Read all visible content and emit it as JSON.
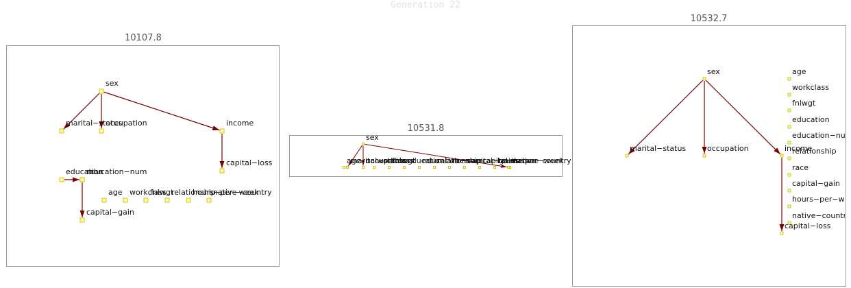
{
  "title": "Generation 22",
  "panels": [
    {
      "score": "10107.8",
      "nodes": [
        {
          "id": "sex",
          "label": "sex"
        },
        {
          "id": "marital-status",
          "label": "marital−status"
        },
        {
          "id": "occupation",
          "label": "occupation"
        },
        {
          "id": "income",
          "label": "income"
        },
        {
          "id": "capital-loss",
          "label": "capital−loss"
        },
        {
          "id": "education",
          "label": "education"
        },
        {
          "id": "race",
          "label": "race"
        },
        {
          "id": "education-num",
          "label": "education−num"
        },
        {
          "id": "capital-gain",
          "label": "capital−gain"
        },
        {
          "id": "age",
          "label": "age"
        },
        {
          "id": "workclass",
          "label": "workclass"
        },
        {
          "id": "fnlwgt",
          "label": "fnlwgt"
        },
        {
          "id": "relationship",
          "label": "relationship"
        },
        {
          "id": "hours-per-week",
          "label": "hours−per−week"
        },
        {
          "id": "native-country",
          "label": "native−country"
        }
      ],
      "edges": [
        [
          "sex",
          "marital-status"
        ],
        [
          "sex",
          "occupation"
        ],
        [
          "sex",
          "income"
        ],
        [
          "income",
          "capital-loss"
        ],
        [
          "education",
          "race"
        ],
        [
          "education-num",
          "capital-gain"
        ]
      ]
    },
    {
      "score": "10531.8",
      "nodes": [
        {
          "id": "sex",
          "label": "sex"
        },
        {
          "id": "age",
          "label": "age"
        },
        {
          "id": "marital-status",
          "label": "marital−status"
        },
        {
          "id": "occupation",
          "label": "occupation"
        },
        {
          "id": "workclass",
          "label": "workclass"
        },
        {
          "id": "fnlwgt",
          "label": "fnlwgt"
        },
        {
          "id": "education",
          "label": "education"
        },
        {
          "id": "education-num",
          "label": "education−num"
        },
        {
          "id": "relationship",
          "label": "relationship"
        },
        {
          "id": "race",
          "label": "race"
        },
        {
          "id": "capital-gain",
          "label": "capital−gain"
        },
        {
          "id": "capital-loss",
          "label": "capital−loss"
        },
        {
          "id": "hours-per-week",
          "label": "hours−per−week"
        },
        {
          "id": "native-country",
          "label": "native−country"
        },
        {
          "id": "income",
          "label": "income"
        }
      ],
      "edges": [
        [
          "sex",
          "marital-status"
        ],
        [
          "sex",
          "occupation"
        ],
        [
          "sex",
          "income"
        ]
      ]
    },
    {
      "score": "10532.7",
      "nodes": [
        {
          "id": "sex",
          "label": "sex"
        },
        {
          "id": "marital-status",
          "label": "marital−status"
        },
        {
          "id": "occupation",
          "label": "occupation"
        },
        {
          "id": "income",
          "label": "income"
        },
        {
          "id": "capital-loss",
          "label": "capital−loss"
        },
        {
          "id": "age",
          "label": "age"
        },
        {
          "id": "workclass",
          "label": "workclass"
        },
        {
          "id": "fnlwgt",
          "label": "fnlwgt"
        },
        {
          "id": "education",
          "label": "education"
        },
        {
          "id": "education-num",
          "label": "education−num"
        },
        {
          "id": "relationship",
          "label": "relationship"
        },
        {
          "id": "race",
          "label": "race"
        },
        {
          "id": "capital-gain",
          "label": "capital−gain"
        },
        {
          "id": "hours-per-week",
          "label": "hours−per−week"
        },
        {
          "id": "native-country",
          "label": "native−country"
        }
      ],
      "edges": [
        [
          "sex",
          "marital-status"
        ],
        [
          "sex",
          "occupation"
        ],
        [
          "sex",
          "income"
        ],
        [
          "income",
          "capital-loss"
        ]
      ]
    }
  ],
  "colors": {
    "edge": "#7a0000",
    "node_fill": "#ffff99",
    "node_stroke": "#c8b400"
  }
}
